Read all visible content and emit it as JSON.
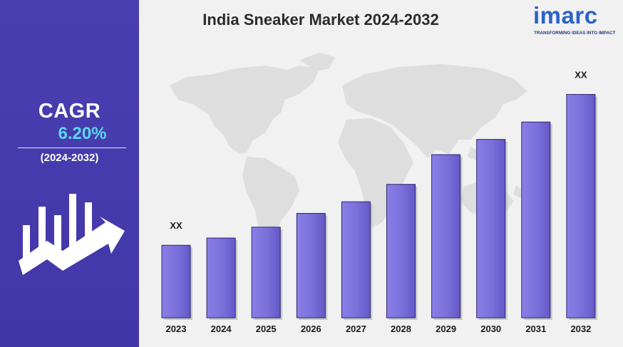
{
  "brand": {
    "logo_text": "imarc",
    "tagline": "TRANSFORMING IDEAS INTO IMPACT",
    "primary_color": "#2a63c9"
  },
  "sidebar": {
    "cagr_label": "CAGR",
    "cagr_value": "6.20%",
    "cagr_period": "(2024-2032)",
    "icon": "growth-chart-arrow-icon",
    "background_color": "#4a3fb0",
    "value_color": "#5ad8f2"
  },
  "chart_data": {
    "type": "bar",
    "title": "India Sneaker Market 2024-2032",
    "xlabel": "",
    "ylabel": "",
    "categories": [
      "2023",
      "2024",
      "2025",
      "2026",
      "2027",
      "2028",
      "2029",
      "2030",
      "2031",
      "2032"
    ],
    "values": [
      1.0,
      1.1,
      1.25,
      1.44,
      1.6,
      1.84,
      2.25,
      2.46,
      2.7,
      3.08
    ],
    "data_labels": [
      {
        "category": "2023",
        "text": "XX"
      },
      {
        "category": "2032",
        "text": "XX"
      }
    ],
    "ylim": [
      0,
      3.3
    ],
    "grid": false,
    "legend": "none",
    "bar_color": "#7b6fd9",
    "background_decoration": "world-map-watermark"
  }
}
